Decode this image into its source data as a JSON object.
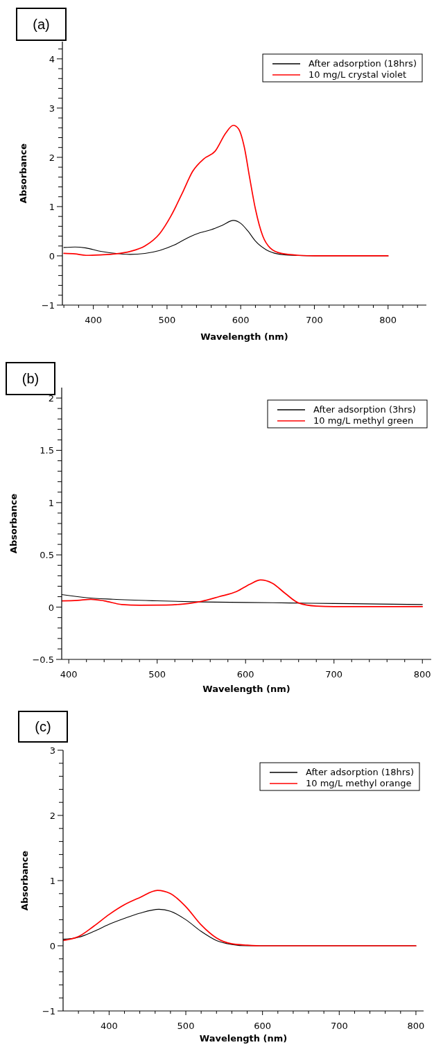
{
  "chart_data": [
    {
      "type": "line",
      "title": "(a)",
      "xlabel": "Wavelength (nm)",
      "ylabel": "Absorbance",
      "xlim": [
        358,
        852
      ],
      "ylim": [
        -1,
        4.35
      ],
      "xticks": [
        {
          "value": 360,
          "label": null
        },
        {
          "value": 380,
          "label": null
        },
        400,
        {
          "value": 420,
          "label": null
        },
        {
          "value": 440,
          "label": null
        },
        {
          "value": 460,
          "label": null
        },
        {
          "value": 480,
          "label": null
        },
        500,
        {
          "value": 520,
          "label": null
        },
        {
          "value": 540,
          "label": null
        },
        {
          "value": 560,
          "label": null
        },
        {
          "value": 580,
          "label": null
        },
        600,
        {
          "value": 620,
          "label": null
        },
        {
          "value": 640,
          "label": null
        },
        {
          "value": 660,
          "label": null
        },
        {
          "value": 680,
          "label": null
        },
        700,
        {
          "value": 720,
          "label": null
        },
        {
          "value": 740,
          "label": null
        },
        {
          "value": 760,
          "label": null
        },
        {
          "value": 780,
          "label": null
        },
        800,
        {
          "value": 820,
          "label": null
        },
        {
          "value": 840,
          "label": null
        }
      ],
      "yticks": [
        -1,
        {
          "value": -0.8,
          "label": null
        },
        {
          "value": -0.6,
          "label": null
        },
        {
          "value": -0.4,
          "label": null
        },
        {
          "value": -0.2,
          "label": null
        },
        0,
        {
          "value": 0.2,
          "label": null
        },
        {
          "value": 0.4,
          "label": null
        },
        {
          "value": 0.6,
          "label": null
        },
        {
          "value": 0.8,
          "label": null
        },
        1,
        {
          "value": 1.2,
          "label": null
        },
        {
          "value": 1.4,
          "label": null
        },
        {
          "value": 1.6,
          "label": null
        },
        {
          "value": 1.8,
          "label": null
        },
        2,
        {
          "value": 2.2,
          "label": null
        },
        {
          "value": 2.4,
          "label": null
        },
        {
          "value": 2.6,
          "label": null
        },
        {
          "value": 2.8,
          "label": null
        },
        3,
        {
          "value": 3.2,
          "label": null
        },
        {
          "value": 3.4,
          "label": null
        },
        {
          "value": 3.6,
          "label": null
        },
        {
          "value": 3.8,
          "label": null
        },
        4,
        {
          "value": 4.2,
          "label": null
        }
      ],
      "legend": "top right",
      "marker": "none",
      "line_style": "solid",
      "series": [
        {
          "name": "After adsorption (18hrs)",
          "color": "#000000",
          "x": [
            360,
            375,
            390,
            410,
            440,
            450,
            470,
            490,
            510,
            530,
            545,
            560,
            575,
            590,
            600,
            610,
            620,
            635,
            650,
            670,
            700,
            800
          ],
          "values": [
            0.17,
            0.18,
            0.16,
            0.09,
            0.035,
            0.03,
            0.05,
            0.11,
            0.22,
            0.38,
            0.47,
            0.53,
            0.62,
            0.72,
            0.66,
            0.5,
            0.3,
            0.12,
            0.04,
            0.01,
            0,
            0
          ]
        },
        {
          "name": "10 mg/L crystal violet",
          "color": "#ff0000",
          "x": [
            360,
            375,
            390,
            410,
            430,
            450,
            470,
            490,
            505,
            520,
            535,
            550,
            565,
            580,
            590,
            597,
            605,
            612,
            620,
            630,
            640,
            655,
            680,
            700,
            800
          ],
          "values": [
            0.05,
            0.04,
            0.01,
            0.02,
            0.04,
            0.09,
            0.2,
            0.45,
            0.8,
            1.25,
            1.72,
            1.97,
            2.12,
            2.5,
            2.65,
            2.58,
            2.2,
            1.6,
            0.95,
            0.4,
            0.16,
            0.05,
            0.01,
            0,
            0
          ]
        }
      ]
    },
    {
      "type": "line",
      "title": "(b)",
      "xlabel": "Wavelength (nm)",
      "ylabel": "Absorbance",
      "xlim": [
        392,
        810
      ],
      "ylim": [
        -0.5,
        2.1
      ],
      "xticks": [
        400,
        {
          "value": 420,
          "label": null
        },
        {
          "value": 440,
          "label": null
        },
        {
          "value": 460,
          "label": null
        },
        {
          "value": 480,
          "label": null
        },
        500,
        {
          "value": 520,
          "label": null
        },
        {
          "value": 540,
          "label": null
        },
        {
          "value": 560,
          "label": null
        },
        {
          "value": 580,
          "label": null
        },
        600,
        {
          "value": 620,
          "label": null
        },
        {
          "value": 640,
          "label": null
        },
        {
          "value": 660,
          "label": null
        },
        {
          "value": 680,
          "label": null
        },
        700,
        {
          "value": 720,
          "label": null
        },
        {
          "value": 740,
          "label": null
        },
        {
          "value": 760,
          "label": null
        },
        {
          "value": 780,
          "label": null
        },
        800
      ],
      "yticks": [
        -0.5,
        {
          "value": -0.4,
          "label": null
        },
        {
          "value": -0.3,
          "label": null
        },
        {
          "value": -0.2,
          "label": null
        },
        {
          "value": -0.1,
          "label": null
        },
        0,
        {
          "value": 0.1,
          "label": null
        },
        {
          "value": 0.2,
          "label": null
        },
        {
          "value": 0.3,
          "label": null
        },
        {
          "value": 0.4,
          "label": null
        },
        0.5,
        {
          "value": 0.6,
          "label": null
        },
        {
          "value": 0.7,
          "label": null
        },
        {
          "value": 0.8,
          "label": null
        },
        {
          "value": 0.9,
          "label": null
        },
        1,
        {
          "value": 1.1,
          "label": null
        },
        {
          "value": 1.2,
          "label": null
        },
        {
          "value": 1.3,
          "label": null
        },
        {
          "value": 1.4,
          "label": null
        },
        1.5,
        {
          "value": 1.6,
          "label": null
        },
        {
          "value": 1.7,
          "label": null
        },
        {
          "value": 1.8,
          "label": null
        },
        {
          "value": 1.9,
          "label": null
        },
        2
      ],
      "legend": "top right",
      "marker": "none",
      "line_style": "solid",
      "series": [
        {
          "name": "After adsorption (3hrs)",
          "color": "#000000",
          "x": [
            392,
            420,
            450,
            500,
            550,
            600,
            650,
            700,
            750,
            800
          ],
          "values": [
            0.12,
            0.09,
            0.075,
            0.06,
            0.05,
            0.045,
            0.04,
            0.035,
            0.03,
            0.025
          ]
        },
        {
          "name": "10 mg/L methyl green",
          "color": "#ff0000",
          "x": [
            392,
            410,
            425,
            440,
            460,
            480,
            510,
            530,
            550,
            570,
            590,
            605,
            617,
            630,
            645,
            660,
            680,
            700,
            800
          ],
          "values": [
            0.06,
            0.065,
            0.075,
            0.06,
            0.025,
            0.018,
            0.02,
            0.03,
            0.055,
            0.1,
            0.15,
            0.22,
            0.26,
            0.23,
            0.13,
            0.04,
            0.01,
            0.005,
            0.005
          ]
        }
      ]
    },
    {
      "type": "line",
      "title": "(c)",
      "xlabel": "Wavelength (nm)",
      "ylabel": "Absorbance",
      "xlim": [
        340,
        810
      ],
      "ylim": [
        -1,
        3
      ],
      "xticks": [
        {
          "value": 360,
          "label": null
        },
        {
          "value": 380,
          "label": null
        },
        400,
        {
          "value": 420,
          "label": null
        },
        {
          "value": 440,
          "label": null
        },
        {
          "value": 460,
          "label": null
        },
        {
          "value": 480,
          "label": null
        },
        500,
        {
          "value": 520,
          "label": null
        },
        {
          "value": 540,
          "label": null
        },
        {
          "value": 560,
          "label": null
        },
        {
          "value": 580,
          "label": null
        },
        600,
        {
          "value": 620,
          "label": null
        },
        {
          "value": 640,
          "label": null
        },
        {
          "value": 660,
          "label": null
        },
        {
          "value": 680,
          "label": null
        },
        700,
        {
          "value": 720,
          "label": null
        },
        {
          "value": 740,
          "label": null
        },
        {
          "value": 760,
          "label": null
        },
        {
          "value": 780,
          "label": null
        },
        800
      ],
      "yticks": [
        -1,
        {
          "value": -0.8,
          "label": null
        },
        {
          "value": -0.6,
          "label": null
        },
        {
          "value": -0.4,
          "label": null
        },
        {
          "value": -0.2,
          "label": null
        },
        0,
        {
          "value": 0.2,
          "label": null
        },
        {
          "value": 0.4,
          "label": null
        },
        {
          "value": 0.6,
          "label": null
        },
        {
          "value": 0.8,
          "label": null
        },
        1,
        {
          "value": 1.2,
          "label": null
        },
        {
          "value": 1.4,
          "label": null
        },
        {
          "value": 1.6,
          "label": null
        },
        {
          "value": 1.8,
          "label": null
        },
        2,
        {
          "value": 2.2,
          "label": null
        },
        {
          "value": 2.4,
          "label": null
        },
        {
          "value": 2.6,
          "label": null
        },
        {
          "value": 2.8,
          "label": null
        },
        3
      ],
      "legend": "top right",
      "marker": "none",
      "line_style": "solid",
      "series": [
        {
          "name": "After adsorption (18hrs)",
          "color": "#000000",
          "x": [
            340,
            360,
            380,
            400,
            420,
            440,
            465,
            480,
            500,
            520,
            540,
            560,
            580,
            800
          ],
          "values": [
            0.1,
            0.13,
            0.22,
            0.33,
            0.42,
            0.5,
            0.56,
            0.53,
            0.4,
            0.22,
            0.08,
            0.02,
            0,
            0
          ]
        },
        {
          "name": "10 mg/L methyl orange",
          "color": "#ff0000",
          "x": [
            340,
            360,
            380,
            400,
            420,
            440,
            463,
            480,
            500,
            520,
            540,
            560,
            580,
            600,
            800
          ],
          "values": [
            0.08,
            0.14,
            0.3,
            0.48,
            0.63,
            0.74,
            0.85,
            0.8,
            0.6,
            0.32,
            0.12,
            0.03,
            0.01,
            0,
            0
          ]
        }
      ]
    }
  ]
}
